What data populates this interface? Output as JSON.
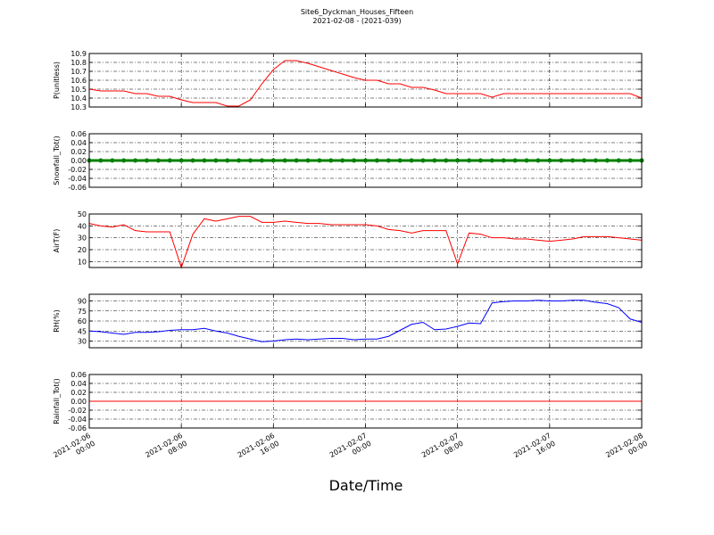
{
  "title": "Site6_Dyckman_Houses_Fifteen",
  "subtitle": "2021-02-08 - (2021-039)",
  "xlabel": "Date/Time",
  "chart_data": [
    {
      "type": "line",
      "ylabel": "P(unitless)",
      "x": [
        "2021-02-06 00:00",
        "2021-02-06 01:00",
        "2021-02-06 02:00",
        "2021-02-06 03:00",
        "2021-02-06 04:00",
        "2021-02-06 05:00",
        "2021-02-06 06:00",
        "2021-02-06 07:00",
        "2021-02-06 08:00",
        "2021-02-06 09:00",
        "2021-02-06 10:00",
        "2021-02-06 11:00",
        "2021-02-06 12:00",
        "2021-02-06 13:00",
        "2021-02-06 14:00",
        "2021-02-06 15:00",
        "2021-02-06 16:00",
        "2021-02-06 17:00",
        "2021-02-06 18:00",
        "2021-02-06 19:00",
        "2021-02-06 20:00",
        "2021-02-06 21:00",
        "2021-02-06 22:00",
        "2021-02-06 23:00",
        "2021-02-07 00:00",
        "2021-02-07 01:00",
        "2021-02-07 02:00",
        "2021-02-07 03:00",
        "2021-02-07 04:00",
        "2021-02-07 05:00",
        "2021-02-07 06:00",
        "2021-02-07 07:00",
        "2021-02-07 08:00",
        "2021-02-07 09:00",
        "2021-02-07 10:00",
        "2021-02-07 11:00",
        "2021-02-07 12:00",
        "2021-02-07 13:00",
        "2021-02-07 14:00",
        "2021-02-07 15:00",
        "2021-02-07 16:00",
        "2021-02-07 17:00",
        "2021-02-07 18:00",
        "2021-02-07 19:00",
        "2021-02-07 20:00",
        "2021-02-07 21:00",
        "2021-02-07 22:00",
        "2021-02-07 23:00",
        "2021-02-08 00:00"
      ],
      "series": [
        {
          "color": "#ff0000",
          "values": [
            10.5,
            10.48,
            10.48,
            10.48,
            10.45,
            10.45,
            10.42,
            10.42,
            10.38,
            10.35,
            10.35,
            10.35,
            10.31,
            10.31,
            10.38,
            10.56,
            10.72,
            10.82,
            10.82,
            10.79,
            10.75,
            10.71,
            10.67,
            10.63,
            10.6,
            10.6,
            10.56,
            10.56,
            10.52,
            10.52,
            10.49,
            10.45,
            10.45,
            10.45,
            10.45,
            10.41,
            10.45,
            10.45,
            10.45,
            10.45,
            10.45,
            10.45,
            10.45,
            10.45,
            10.45,
            10.45,
            10.45,
            10.45,
            10.4
          ]
        }
      ],
      "xlim": [
        "2021-02-06 00:00",
        "2021-02-08 00:00"
      ],
      "xticks": [
        "2021-02-06 00:00",
        "2021-02-06 08:00",
        "2021-02-06 16:00",
        "2021-02-07 00:00",
        "2021-02-07 08:00",
        "2021-02-07 16:00",
        "2021-02-08 00:00"
      ],
      "ylim": [
        10.3,
        10.9
      ],
      "yticks": [
        10.3,
        10.4,
        10.5,
        10.6,
        10.7,
        10.8,
        10.9
      ],
      "grid": true
    },
    {
      "type": "line",
      "ylabel": "Snowfall_Tot()",
      "x": [
        "2021-02-06 00:00",
        "2021-02-06 01:00",
        "2021-02-06 02:00",
        "2021-02-06 03:00",
        "2021-02-06 04:00",
        "2021-02-06 05:00",
        "2021-02-06 06:00",
        "2021-02-06 07:00",
        "2021-02-06 08:00",
        "2021-02-06 09:00",
        "2021-02-06 10:00",
        "2021-02-06 11:00",
        "2021-02-06 12:00",
        "2021-02-06 13:00",
        "2021-02-06 14:00",
        "2021-02-06 15:00",
        "2021-02-06 16:00",
        "2021-02-06 17:00",
        "2021-02-06 18:00",
        "2021-02-06 19:00",
        "2021-02-06 20:00",
        "2021-02-06 21:00",
        "2021-02-06 22:00",
        "2021-02-06 23:00",
        "2021-02-07 00:00",
        "2021-02-07 01:00",
        "2021-02-07 02:00",
        "2021-02-07 03:00",
        "2021-02-07 04:00",
        "2021-02-07 05:00",
        "2021-02-07 06:00",
        "2021-02-07 07:00",
        "2021-02-07 08:00",
        "2021-02-07 09:00",
        "2021-02-07 10:00",
        "2021-02-07 11:00",
        "2021-02-07 12:00",
        "2021-02-07 13:00",
        "2021-02-07 14:00",
        "2021-02-07 15:00",
        "2021-02-07 16:00",
        "2021-02-07 17:00",
        "2021-02-07 18:00",
        "2021-02-07 19:00",
        "2021-02-07 20:00",
        "2021-02-07 21:00",
        "2021-02-07 22:00",
        "2021-02-07 23:00",
        "2021-02-08 00:00"
      ],
      "series": [
        {
          "color": "#008000",
          "marker": "o",
          "values": [
            0,
            0,
            0,
            0,
            0,
            0,
            0,
            0,
            0,
            0,
            0,
            0,
            0,
            0,
            0,
            0,
            0,
            0,
            0,
            0,
            0,
            0,
            0,
            0,
            0,
            0,
            0,
            0,
            0,
            0,
            0,
            0,
            0,
            0,
            0,
            0,
            0,
            0,
            0,
            0,
            0,
            0,
            0,
            0,
            0,
            0,
            0,
            0,
            0
          ]
        }
      ],
      "xlim": [
        "2021-02-06 00:00",
        "2021-02-08 00:00"
      ],
      "xticks": [
        "2021-02-06 00:00",
        "2021-02-06 08:00",
        "2021-02-06 16:00",
        "2021-02-07 00:00",
        "2021-02-07 08:00",
        "2021-02-07 16:00",
        "2021-02-08 00:00"
      ],
      "ylim": [
        -0.06,
        0.06
      ],
      "yticks": [
        -0.06,
        -0.04,
        -0.02,
        {
          "value": 0,
          "label": "0.00"
        },
        0.02,
        0.04,
        0.06
      ],
      "grid": true
    },
    {
      "type": "line",
      "ylabel": "AirT(F)",
      "x": [
        "2021-02-06 00:00",
        "2021-02-06 01:00",
        "2021-02-06 02:00",
        "2021-02-06 03:00",
        "2021-02-06 04:00",
        "2021-02-06 05:00",
        "2021-02-06 06:00",
        "2021-02-06 07:00",
        "2021-02-06 08:00",
        "2021-02-06 09:00",
        "2021-02-06 10:00",
        "2021-02-06 11:00",
        "2021-02-06 12:00",
        "2021-02-06 13:00",
        "2021-02-06 14:00",
        "2021-02-06 15:00",
        "2021-02-06 16:00",
        "2021-02-06 17:00",
        "2021-02-06 18:00",
        "2021-02-06 19:00",
        "2021-02-06 20:00",
        "2021-02-06 21:00",
        "2021-02-06 22:00",
        "2021-02-06 23:00",
        "2021-02-07 00:00",
        "2021-02-07 01:00",
        "2021-02-07 02:00",
        "2021-02-07 03:00",
        "2021-02-07 04:00",
        "2021-02-07 05:00",
        "2021-02-07 06:00",
        "2021-02-07 07:00",
        "2021-02-07 08:00",
        "2021-02-07 09:00",
        "2021-02-07 10:00",
        "2021-02-07 11:00",
        "2021-02-07 12:00",
        "2021-02-07 13:00",
        "2021-02-07 14:00",
        "2021-02-07 15:00",
        "2021-02-07 16:00",
        "2021-02-07 17:00",
        "2021-02-07 18:00",
        "2021-02-07 19:00",
        "2021-02-07 20:00",
        "2021-02-07 21:00",
        "2021-02-07 22:00",
        "2021-02-07 23:00",
        "2021-02-08 00:00"
      ],
      "series": [
        {
          "color": "#ff0000",
          "values": [
            42,
            40,
            39,
            41,
            36,
            35,
            35,
            35,
            5,
            33,
            46,
            44,
            46,
            48,
            48,
            43,
            43,
            44,
            43,
            42,
            42,
            41,
            41,
            41,
            41,
            40,
            37,
            36,
            34,
            36,
            36,
            36,
            8,
            34,
            33,
            30,
            30,
            29,
            29,
            28,
            27,
            28,
            29,
            31,
            31,
            31,
            30,
            29,
            28
          ]
        }
      ],
      "xlim": [
        "2021-02-06 00:00",
        "2021-02-08 00:00"
      ],
      "xticks": [
        "2021-02-06 00:00",
        "2021-02-06 08:00",
        "2021-02-06 16:00",
        "2021-02-07 00:00",
        "2021-02-07 08:00",
        "2021-02-07 16:00",
        "2021-02-08 00:00"
      ],
      "ylim": [
        5,
        50
      ],
      "yticks": [
        10,
        20,
        30,
        40,
        50
      ],
      "grid": true
    },
    {
      "type": "line",
      "ylabel": "RH(%)",
      "x": [
        "2021-02-06 00:00",
        "2021-02-06 01:00",
        "2021-02-06 02:00",
        "2021-02-06 03:00",
        "2021-02-06 04:00",
        "2021-02-06 05:00",
        "2021-02-06 06:00",
        "2021-02-06 07:00",
        "2021-02-06 08:00",
        "2021-02-06 09:00",
        "2021-02-06 10:00",
        "2021-02-06 11:00",
        "2021-02-06 12:00",
        "2021-02-06 13:00",
        "2021-02-06 14:00",
        "2021-02-06 15:00",
        "2021-02-06 16:00",
        "2021-02-06 17:00",
        "2021-02-06 18:00",
        "2021-02-06 19:00",
        "2021-02-06 20:00",
        "2021-02-06 21:00",
        "2021-02-06 22:00",
        "2021-02-06 23:00",
        "2021-02-07 00:00",
        "2021-02-07 01:00",
        "2021-02-07 02:00",
        "2021-02-07 03:00",
        "2021-02-07 04:00",
        "2021-02-07 05:00",
        "2021-02-07 06:00",
        "2021-02-07 07:00",
        "2021-02-07 08:00",
        "2021-02-07 09:00",
        "2021-02-07 10:00",
        "2021-02-07 11:00",
        "2021-02-07 12:00",
        "2021-02-07 13:00",
        "2021-02-07 14:00",
        "2021-02-07 15:00",
        "2021-02-07 16:00",
        "2021-02-07 17:00",
        "2021-02-07 18:00",
        "2021-02-07 19:00",
        "2021-02-07 20:00",
        "2021-02-07 21:00",
        "2021-02-07 22:00",
        "2021-02-07 23:00",
        "2021-02-08 00:00"
      ],
      "series": [
        {
          "color": "#0000ff",
          "values": [
            45,
            44,
            42,
            40,
            43,
            43,
            44,
            46,
            47,
            47,
            49,
            45,
            42,
            37,
            33,
            29,
            30,
            32,
            33,
            32,
            33,
            34,
            34,
            32,
            33,
            33,
            37,
            46,
            55,
            58,
            47,
            48,
            52,
            57,
            56,
            87,
            89,
            90,
            90,
            91,
            90,
            90,
            91,
            91,
            88,
            86,
            80,
            63,
            58
          ]
        }
      ],
      "xlim": [
        "2021-02-06 00:00",
        "2021-02-08 00:00"
      ],
      "xticks": [
        "2021-02-06 00:00",
        "2021-02-06 08:00",
        "2021-02-06 16:00",
        "2021-02-07 00:00",
        "2021-02-07 08:00",
        "2021-02-07 16:00",
        "2021-02-08 00:00"
      ],
      "ylim": [
        20,
        100
      ],
      "yticks": [
        30,
        45,
        60,
        75,
        90
      ],
      "grid": true
    },
    {
      "type": "line",
      "ylabel": "Rainfall_Tot()",
      "x": [
        "2021-02-06 00:00",
        "2021-02-06 01:00",
        "2021-02-06 02:00",
        "2021-02-06 03:00",
        "2021-02-06 04:00",
        "2021-02-06 05:00",
        "2021-02-06 06:00",
        "2021-02-06 07:00",
        "2021-02-06 08:00",
        "2021-02-06 09:00",
        "2021-02-06 10:00",
        "2021-02-06 11:00",
        "2021-02-06 12:00",
        "2021-02-06 13:00",
        "2021-02-06 14:00",
        "2021-02-06 15:00",
        "2021-02-06 16:00",
        "2021-02-06 17:00",
        "2021-02-06 18:00",
        "2021-02-06 19:00",
        "2021-02-06 20:00",
        "2021-02-06 21:00",
        "2021-02-06 22:00",
        "2021-02-06 23:00",
        "2021-02-07 00:00",
        "2021-02-07 01:00",
        "2021-02-07 02:00",
        "2021-02-07 03:00",
        "2021-02-07 04:00",
        "2021-02-07 05:00",
        "2021-02-07 06:00",
        "2021-02-07 07:00",
        "2021-02-07 08:00",
        "2021-02-07 09:00",
        "2021-02-07 10:00",
        "2021-02-07 11:00",
        "2021-02-07 12:00",
        "2021-02-07 13:00",
        "2021-02-07 14:00",
        "2021-02-07 15:00",
        "2021-02-07 16:00",
        "2021-02-07 17:00",
        "2021-02-07 18:00",
        "2021-02-07 19:00",
        "2021-02-07 20:00",
        "2021-02-07 21:00",
        "2021-02-07 22:00",
        "2021-02-07 23:00",
        "2021-02-08 00:00"
      ],
      "series": [
        {
          "color": "#ff0000",
          "values": [
            0,
            0,
            0,
            0,
            0,
            0,
            0,
            0,
            0,
            0,
            0,
            0,
            0,
            0,
            0,
            0,
            0,
            0,
            0,
            0,
            0,
            0,
            0,
            0,
            0,
            0,
            0,
            0,
            0,
            0,
            0,
            0,
            0,
            0,
            0,
            0,
            0,
            0,
            0,
            0,
            0,
            0,
            0,
            0,
            0,
            0,
            0,
            0,
            0
          ]
        }
      ],
      "xlim": [
        "2021-02-06 00:00",
        "2021-02-08 00:00"
      ],
      "xticks": [
        "2021-02-06 00:00",
        "2021-02-06 08:00",
        "2021-02-06 16:00",
        "2021-02-07 00:00",
        "2021-02-07 08:00",
        "2021-02-07 16:00",
        "2021-02-08 00:00"
      ],
      "ylim": [
        -0.06,
        0.06
      ],
      "yticks": [
        -0.06,
        -0.04,
        -0.02,
        {
          "value": 0,
          "label": "0.00"
        },
        0.02,
        0.04,
        0.06
      ],
      "grid": true
    }
  ]
}
